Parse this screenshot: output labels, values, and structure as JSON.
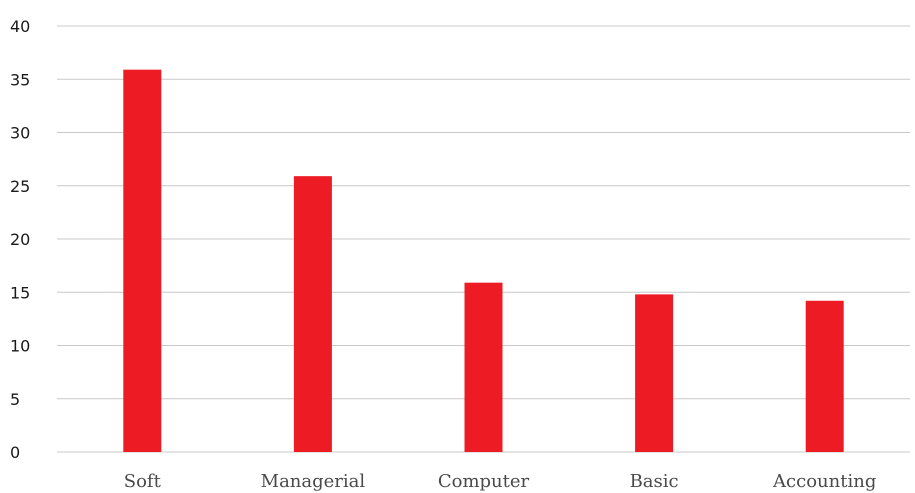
{
  "chart_data": {
    "type": "bar",
    "categories": [
      "Soft",
      "Managerial",
      "Computer",
      "Basic",
      "Accounting"
    ],
    "values": [
      35.9,
      25.9,
      15.9,
      14.8,
      14.2
    ],
    "ylim": [
      0,
      40
    ],
    "yticks": [
      0,
      5,
      10,
      15,
      20,
      25,
      30,
      35,
      40
    ],
    "grid": true,
    "bar_color": "#ed1c24",
    "grid_color": "#c8c8c8"
  }
}
